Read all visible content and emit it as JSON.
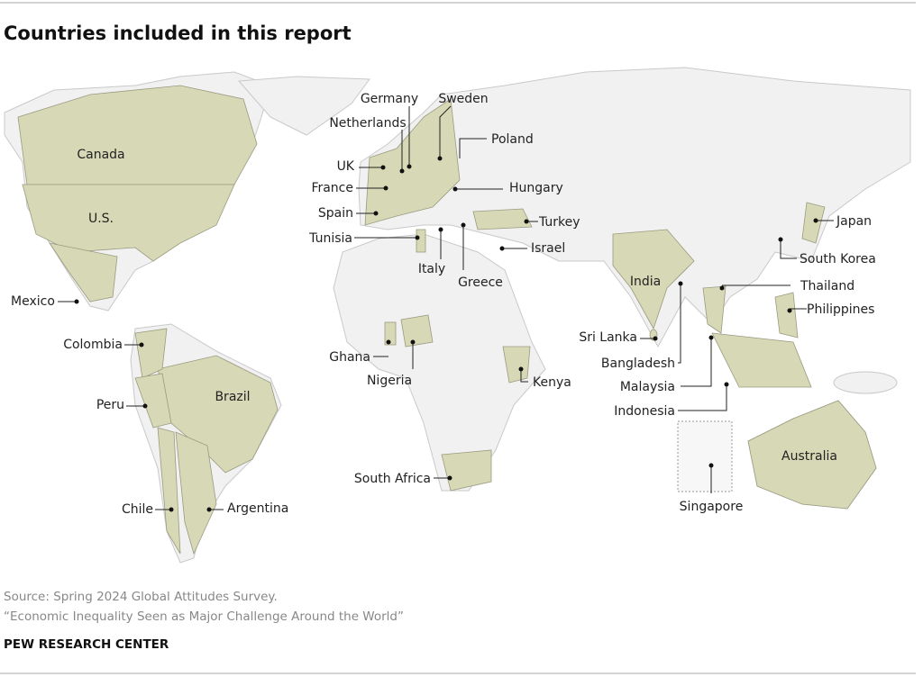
{
  "title": "Countries included in this report",
  "countries": [
    "Canada",
    "U.S.",
    "Mexico",
    "Colombia",
    "Peru",
    "Brazil",
    "Chile",
    "Argentina",
    "UK",
    "Germany",
    "Netherlands",
    "Sweden",
    "Poland",
    "France",
    "Hungary",
    "Spain",
    "Turkey",
    "Tunisia",
    "Italy",
    "Greece",
    "Israel",
    "India",
    "Sri Lanka",
    "Bangladesh",
    "Malaysia",
    "Indonesia",
    "Japan",
    "South Korea",
    "Thailand",
    "Philippines",
    "Ghana",
    "Nigeria",
    "Kenya",
    "South Africa",
    "Australia",
    "Singapore"
  ],
  "source": "Source: Spring 2024 Global Attitudes Survey.",
  "note": "“Economic Inequality Seen as Major Challenge Around the World”",
  "org": "PEW RESEARCH CENTER"
}
